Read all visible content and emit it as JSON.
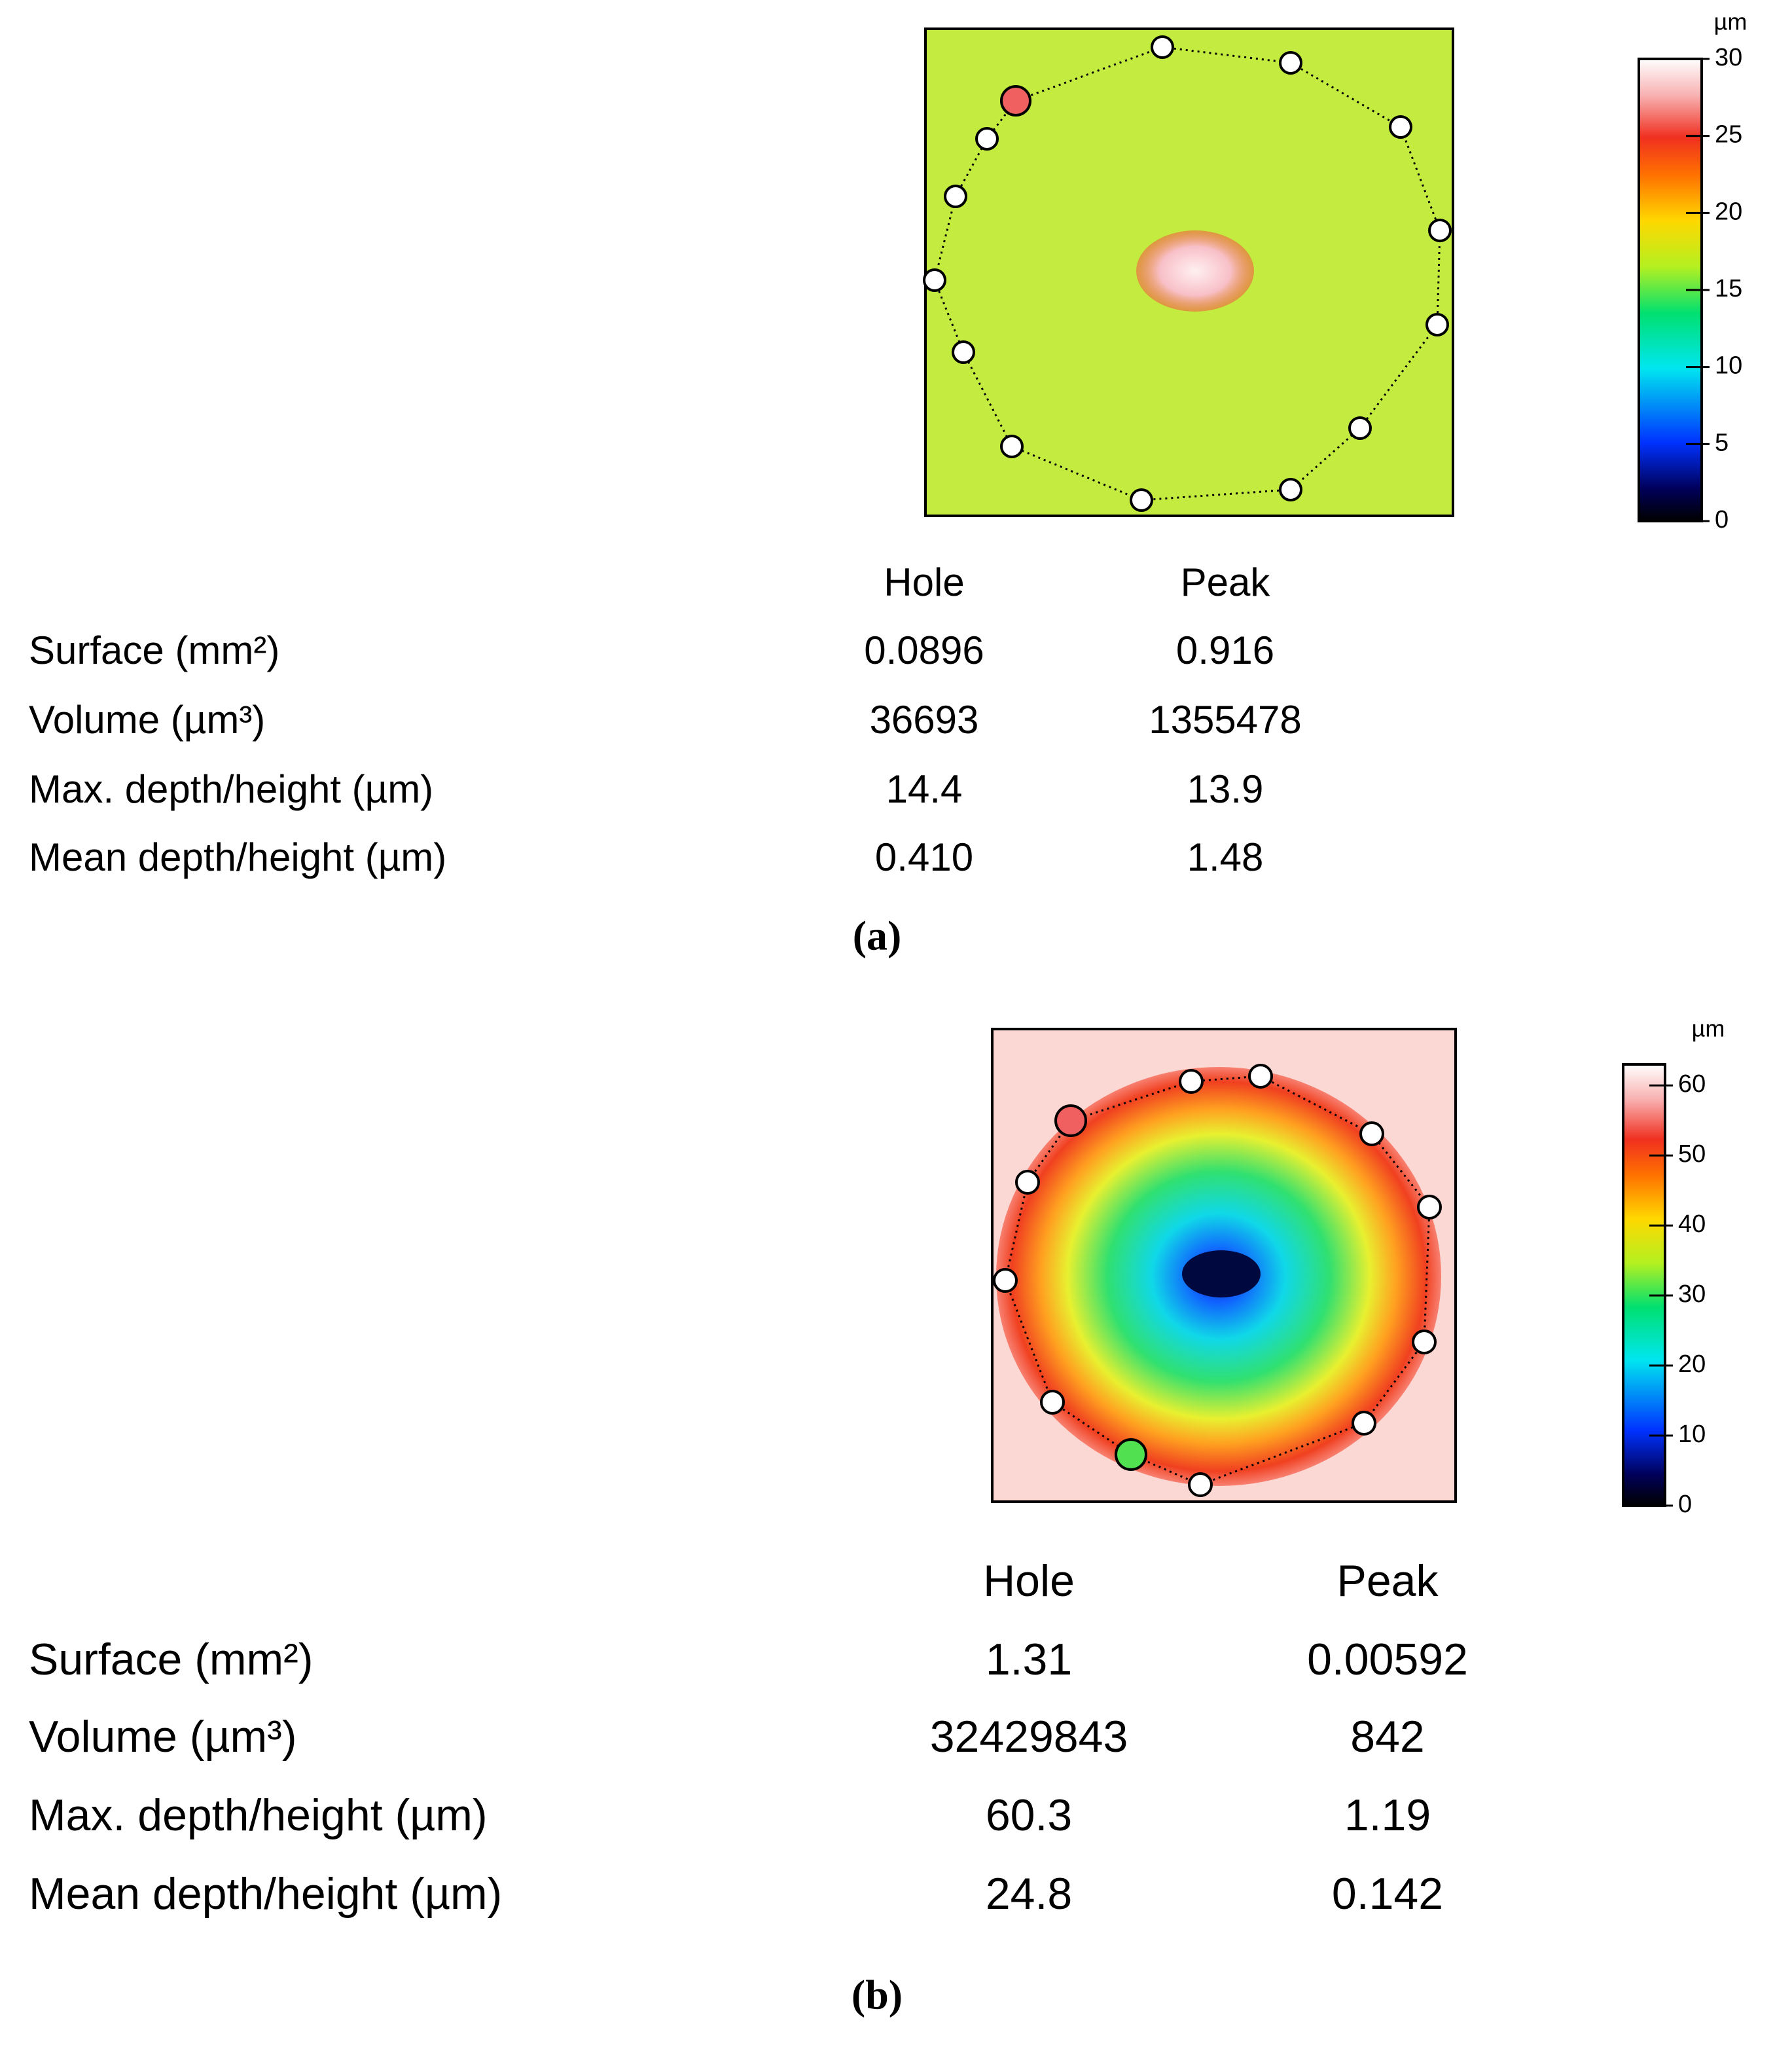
{
  "panels": [
    {
      "caption": "(a)",
      "colorbar": {
        "unit": "µm",
        "ylim": [
          0,
          30
        ],
        "ticks": [
          0,
          5,
          10,
          15,
          20,
          25,
          30
        ]
      },
      "table": {
        "columns": [
          "Hole",
          "Peak"
        ],
        "rows": [
          {
            "label": "Surface (mm²)",
            "values": [
              "0.0896",
              "0.916"
            ]
          },
          {
            "label": "Volume (µm³)",
            "values": [
              "36693",
              "1355478"
            ]
          },
          {
            "label": "Max. depth/height (µm)",
            "values": [
              "14.4",
              "13.9"
            ]
          },
          {
            "label": "Mean depth/height (µm)",
            "values": [
              "0.410",
              "1.48"
            ]
          }
        ]
      }
    },
    {
      "caption": "(b)",
      "colorbar": {
        "unit": "µm",
        "ylim": [
          0,
          63
        ],
        "ticks": [
          0,
          10,
          20,
          30,
          40,
          50,
          60
        ]
      },
      "table": {
        "columns": [
          "Hole",
          "Peak"
        ],
        "rows": [
          {
            "label": "Surface (mm²)",
            "values": [
              "1.31",
              "0.00592"
            ]
          },
          {
            "label": "Volume (µm³)",
            "values": [
              "32429843",
              "842"
            ]
          },
          {
            "label": "Max. depth/height (µm)",
            "values": [
              "60.3",
              "1.19"
            ]
          },
          {
            "label": "Mean depth/height (µm)",
            "values": [
              "24.8",
              "0.142"
            ]
          }
        ]
      }
    }
  ]
}
